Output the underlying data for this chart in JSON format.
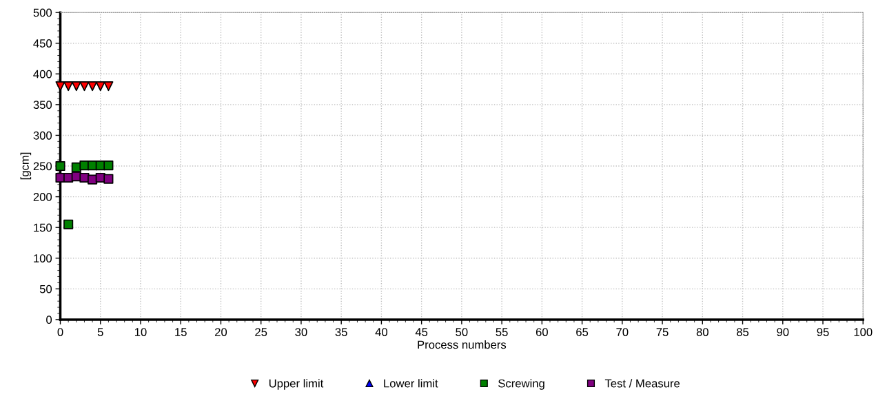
{
  "chart_data": {
    "type": "scatter",
    "xlabel": "Process numbers",
    "ylabel": "[gcm]",
    "xlim": [
      0,
      100
    ],
    "xticks": [
      0,
      5,
      10,
      15,
      20,
      25,
      30,
      35,
      40,
      45,
      50,
      55,
      60,
      65,
      70,
      75,
      80,
      85,
      90,
      95,
      100
    ],
    "ylim": [
      0,
      500
    ],
    "yticks": [
      0,
      50,
      100,
      150,
      200,
      250,
      300,
      350,
      400,
      450,
      500
    ],
    "grid": true,
    "legend": "bottom",
    "series": [
      {
        "name": "Upper limit",
        "color": "#ff0000",
        "marker": "triangle-down",
        "x": [
          0,
          1,
          2,
          3,
          4,
          5,
          6
        ],
        "values": [
          380,
          380,
          380,
          380,
          380,
          380,
          380
        ]
      },
      {
        "name": "Lower limit",
        "color": "#0000ff",
        "marker": "triangle"
      },
      {
        "name": "Screwing",
        "color": "#008000",
        "marker": "square",
        "x": [
          0,
          1,
          2,
          3,
          4,
          5,
          6
        ],
        "values": [
          250,
          155,
          248,
          251,
          251,
          251,
          251
        ]
      },
      {
        "name": "Test / Measure",
        "color": "#800080",
        "marker": "square",
        "x": [
          0,
          1,
          2,
          3,
          4,
          5,
          6
        ],
        "values": [
          231,
          231,
          233,
          231,
          228,
          231,
          229
        ]
      }
    ]
  }
}
